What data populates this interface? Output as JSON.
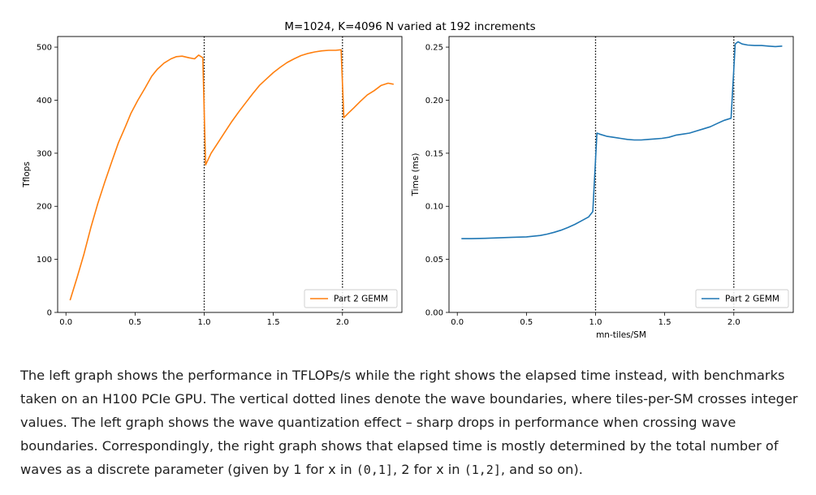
{
  "figure": {
    "suptitle": "M=1024, K=4096 N varied at 192 increments"
  },
  "chart_data": [
    {
      "type": "line",
      "title": "",
      "xlabel": "",
      "ylabel": "Tflops",
      "xlim": [
        -0.06,
        2.43
      ],
      "ylim": [
        0,
        520
      ],
      "x_ticks": [
        0.0,
        0.5,
        1.0,
        1.5,
        2.0
      ],
      "x_tick_labels": [
        "0.0",
        "0.5",
        "1.0",
        "1.5",
        "2.0"
      ],
      "y_ticks": [
        0,
        100,
        200,
        300,
        400,
        500
      ],
      "y_tick_labels": [
        "0",
        "100",
        "200",
        "300",
        "400",
        "500"
      ],
      "vlines": [
        1.0,
        2.0
      ],
      "legend_position": "lower-right",
      "series": [
        {
          "name": "Part 2 GEMM",
          "color": "#ff7f0e",
          "x": [
            0.03,
            0.08,
            0.13,
            0.18,
            0.23,
            0.28,
            0.33,
            0.38,
            0.43,
            0.47,
            0.52,
            0.57,
            0.62,
            0.66,
            0.71,
            0.76,
            0.8,
            0.84,
            0.89,
            0.93,
            0.96,
            0.99,
            1.01,
            1.05,
            1.1,
            1.15,
            1.2,
            1.25,
            1.3,
            1.35,
            1.4,
            1.45,
            1.5,
            1.55,
            1.6,
            1.65,
            1.7,
            1.75,
            1.8,
            1.85,
            1.9,
            1.95,
            1.99,
            2.01,
            2.04,
            2.08,
            2.13,
            2.18,
            2.23,
            2.28,
            2.33,
            2.37
          ],
          "y": [
            23,
            65,
            110,
            160,
            205,
            245,
            283,
            320,
            350,
            375,
            400,
            422,
            445,
            458,
            470,
            478,
            482,
            483,
            480,
            478,
            485,
            480,
            278,
            300,
            320,
            340,
            360,
            378,
            395,
            412,
            428,
            440,
            452,
            462,
            471,
            478,
            484,
            488,
            491,
            493,
            494,
            494,
            495,
            367,
            375,
            385,
            398,
            410,
            418,
            428,
            432,
            430
          ]
        }
      ]
    },
    {
      "type": "line",
      "title": "",
      "xlabel": "mn-tiles/SM",
      "ylabel": "Time (ms)",
      "xlim": [
        -0.06,
        2.43
      ],
      "ylim": [
        0,
        0.26
      ],
      "x_ticks": [
        0.0,
        0.5,
        1.0,
        1.5,
        2.0
      ],
      "x_tick_labels": [
        "0.0",
        "0.5",
        "1.0",
        "1.5",
        "2.0"
      ],
      "y_ticks": [
        0,
        0.05,
        0.1,
        0.15,
        0.2,
        0.25
      ],
      "y_tick_labels": [
        "0.00",
        "0.05",
        "0.10",
        "0.15",
        "0.20",
        "0.25"
      ],
      "vlines": [
        1.0,
        2.0
      ],
      "legend_position": "lower-right",
      "series": [
        {
          "name": "Part 2 GEMM",
          "color": "#1f77b4",
          "x": [
            0.03,
            0.1,
            0.2,
            0.3,
            0.4,
            0.5,
            0.55,
            0.6,
            0.65,
            0.7,
            0.75,
            0.8,
            0.85,
            0.9,
            0.95,
            0.98,
            1.01,
            1.03,
            1.08,
            1.13,
            1.18,
            1.23,
            1.28,
            1.33,
            1.38,
            1.43,
            1.48,
            1.53,
            1.58,
            1.63,
            1.68,
            1.73,
            1.78,
            1.83,
            1.88,
            1.93,
            1.98,
            2.01,
            2.03,
            2.06,
            2.1,
            2.15,
            2.2,
            2.25,
            2.3,
            2.35
          ],
          "y": [
            0.0695,
            0.0695,
            0.0698,
            0.0703,
            0.0708,
            0.0712,
            0.0718,
            0.0725,
            0.0738,
            0.0755,
            0.0775,
            0.08,
            0.083,
            0.0865,
            0.09,
            0.095,
            0.169,
            0.168,
            0.166,
            0.165,
            0.164,
            0.163,
            0.1625,
            0.1625,
            0.163,
            0.1635,
            0.164,
            0.165,
            0.167,
            0.168,
            0.169,
            0.171,
            0.173,
            0.175,
            0.178,
            0.181,
            0.183,
            0.253,
            0.255,
            0.253,
            0.252,
            0.2515,
            0.2515,
            0.251,
            0.2505,
            0.251
          ]
        }
      ]
    }
  ],
  "caption": {
    "part1": "The left graph shows the performance in TFLOPs/s while the right shows the elapsed time instead, with benchmarks taken on an H100 PCIe GPU. The vertical dotted lines denote the wave boundaries, where tiles-per-SM crosses integer values. The left graph shows the wave quantization effect – sharp drops in performance when crossing wave boundaries. Correspondingly, the right graph shows that elapsed time is mostly determined by the total number of waves as a discrete parameter (given by 1 for x in ",
    "code1": "(0,1]",
    "part2": ", 2 for x in ",
    "code2": "(1,2]",
    "part3": ", and so on)."
  }
}
